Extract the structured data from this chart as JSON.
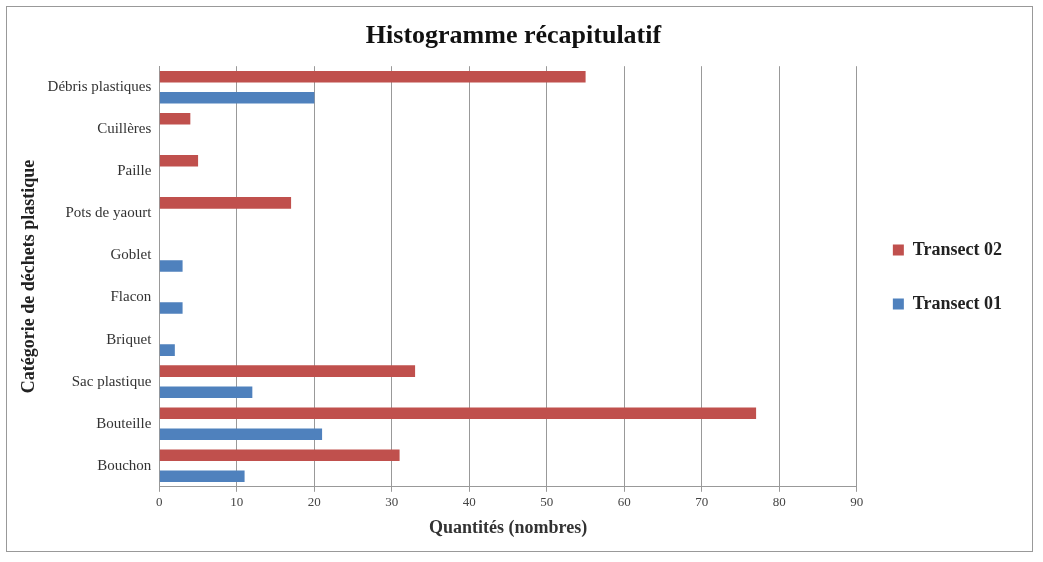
{
  "chart_data": {
    "type": "bar",
    "orientation": "horizontal",
    "title": "Histogramme récapitulatif",
    "xlabel": "Quantités (nombres)",
    "ylabel": "Catégorie de déchets plastique",
    "categories": [
      "Débris plastiques",
      "Cuillères",
      "Paille",
      "Pots de yaourt",
      "Goblet",
      "Flacon",
      "Briquet",
      "Sac plastique",
      "Bouteille",
      "Bouchon"
    ],
    "series": [
      {
        "name": "Transect 02",
        "color": "#c0504d",
        "values": [
          55,
          4,
          5,
          17,
          null,
          null,
          null,
          33,
          77,
          31
        ]
      },
      {
        "name": "Transect 01",
        "color": "#4f81bd",
        "values": [
          20,
          null,
          null,
          null,
          3,
          3,
          2,
          12,
          21,
          11
        ]
      }
    ],
    "xlim": [
      0,
      90
    ],
    "xticks": [
      0,
      10,
      20,
      30,
      40,
      50,
      60,
      70,
      80,
      90
    ],
    "grid": "x",
    "legend": "right"
  }
}
